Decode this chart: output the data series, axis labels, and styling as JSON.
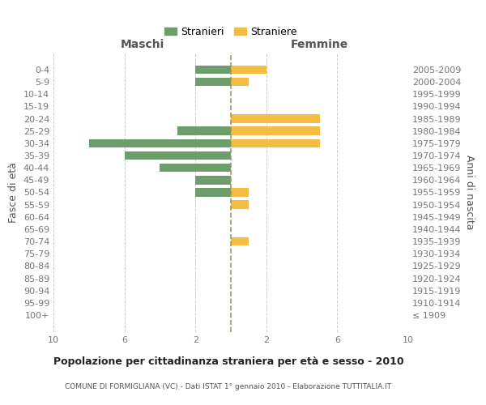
{
  "age_groups": [
    "100+",
    "95-99",
    "90-94",
    "85-89",
    "80-84",
    "75-79",
    "70-74",
    "65-69",
    "60-64",
    "55-59",
    "50-54",
    "45-49",
    "40-44",
    "35-39",
    "30-34",
    "25-29",
    "20-24",
    "15-19",
    "10-14",
    "5-9",
    "0-4"
  ],
  "birth_years": [
    "≤ 1909",
    "1910-1914",
    "1915-1919",
    "1920-1924",
    "1925-1929",
    "1930-1934",
    "1935-1939",
    "1940-1944",
    "1945-1949",
    "1950-1954",
    "1955-1959",
    "1960-1964",
    "1965-1969",
    "1970-1974",
    "1975-1979",
    "1980-1984",
    "1985-1989",
    "1990-1994",
    "1995-1999",
    "2000-2004",
    "2005-2009"
  ],
  "maschi": [
    0,
    0,
    0,
    0,
    0,
    0,
    0,
    0,
    0,
    0,
    2,
    2,
    4,
    6,
    8,
    3,
    0,
    0,
    0,
    2,
    2
  ],
  "femmine": [
    0,
    0,
    0,
    0,
    0,
    0,
    1,
    0,
    0,
    1,
    1,
    0,
    0,
    0,
    5,
    5,
    5,
    0,
    0,
    1,
    2
  ],
  "color_maschi": "#6b9e6b",
  "color_femmine": "#f5bc42",
  "title": "Popolazione per cittadinanza straniera per età e sesso - 2010",
  "subtitle": "COMUNE DI FORMIGLIANA (VC) - Dati ISTAT 1° gennaio 2010 - Elaborazione TUTTITALIA.IT",
  "ylabel_left": "Fasce di età",
  "ylabel_right": "Anni di nascita",
  "header_left": "Maschi",
  "header_right": "Femmine",
  "legend_maschi": "Stranieri",
  "legend_femmine": "Straniere",
  "xlim": 10,
  "background_color": "#ffffff",
  "grid_color": "#cccccc",
  "centerline_color": "#999966"
}
